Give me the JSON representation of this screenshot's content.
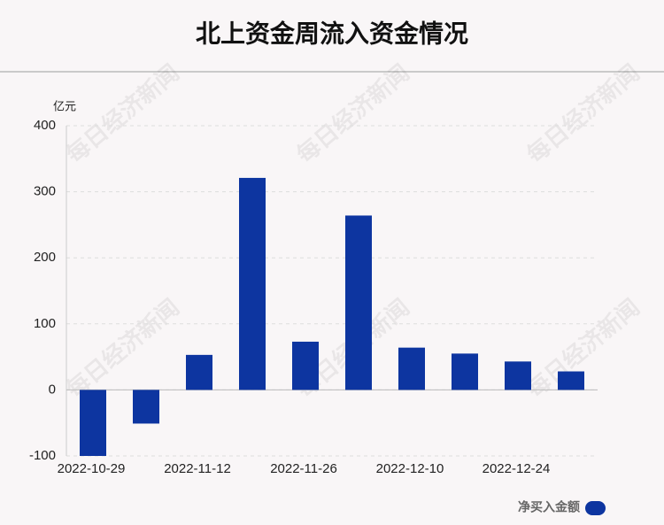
{
  "chart_data": {
    "type": "bar",
    "title": "北上资金周流入资金情况",
    "y_unit": "亿元",
    "watermark": "每日经济新闻",
    "categories": [
      "2022-10-29",
      null,
      "2022-11-12",
      null,
      "2022-11-26",
      null,
      "2022-12-10",
      null,
      "2022-12-24",
      null
    ],
    "series": [
      {
        "name": "净买入金额",
        "color": "#0d35a0",
        "values": [
          -100,
          -51,
          53,
          321,
          73,
          264,
          64,
          55,
          43,
          28
        ]
      }
    ],
    "ylim": [
      -100,
      400
    ],
    "yticks": [
      -100,
      0,
      100,
      200,
      300,
      400
    ],
    "grid": true,
    "legend": "bottom-right"
  }
}
